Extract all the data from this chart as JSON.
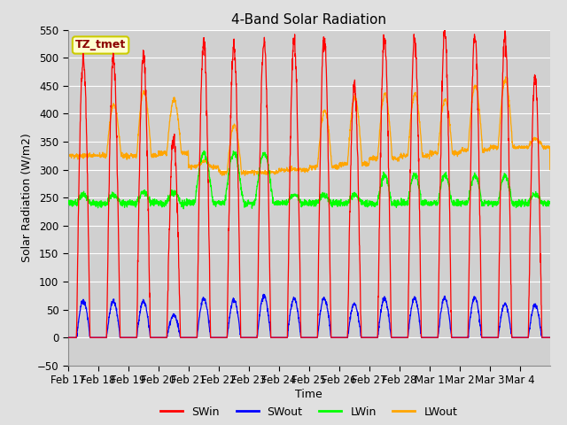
{
  "title": "4-Band Solar Radiation",
  "ylabel": "Solar Radiation (W/m2)",
  "xlabel": "Time",
  "ylim": [
    -50,
    550
  ],
  "annotation": "TZ_tmet",
  "legend_labels": [
    "SWin",
    "SWout",
    "LWin",
    "LWout"
  ],
  "legend_colors": [
    "red",
    "blue",
    "green",
    "orange"
  ],
  "x_tick_labels": [
    "Feb 17",
    "Feb 18",
    "Feb 19",
    "Feb 20",
    "Feb 21",
    "Feb 22",
    "Feb 23",
    "Feb 24",
    "Feb 25",
    "Feb 26",
    "Feb 27",
    "Feb 28",
    "Mar 1",
    "Mar 2",
    "Mar 3",
    "Mar 4"
  ],
  "background_color": "#e0e0e0",
  "plot_bg_color": "#d0d0d0",
  "grid_color": "white",
  "num_days": 16,
  "points_per_day": 144,
  "swin_peaks": [
    500,
    498,
    505,
    355,
    530,
    522,
    532,
    531,
    540,
    450,
    535,
    535,
    545,
    540,
    540,
    462
  ],
  "swout_peaks": [
    65,
    65,
    65,
    40,
    70,
    68,
    75,
    70,
    70,
    60,
    70,
    70,
    72,
    72,
    60,
    58
  ],
  "lwout_base": [
    325,
    325,
    325,
    330,
    305,
    295,
    295,
    300,
    305,
    310,
    320,
    325,
    330,
    335,
    340,
    340
  ],
  "lwout_day_peak": [
    0,
    90,
    115,
    95,
    10,
    85,
    0,
    0,
    100,
    120,
    115,
    110,
    95,
    115,
    120,
    15
  ],
  "lwin_base": 240,
  "lwin_day_bump": [
    15,
    15,
    20,
    20,
    15,
    15,
    15,
    15,
    15,
    15,
    15,
    15,
    15,
    15,
    15,
    15
  ],
  "lwin_special_days": [
    4,
    5,
    6
  ],
  "lwin_special_bump": 75
}
